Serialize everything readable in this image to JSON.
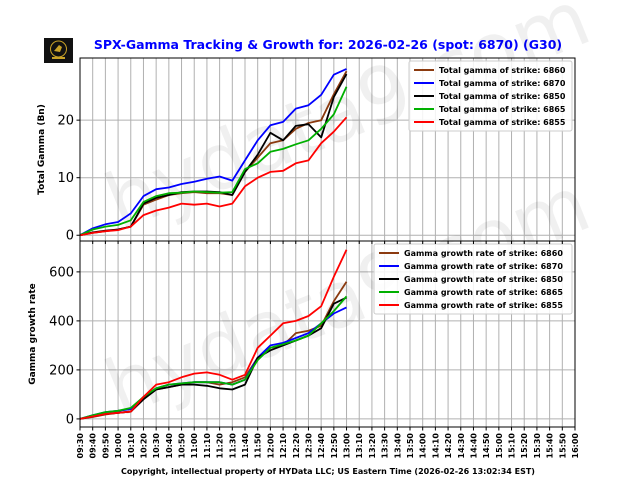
{
  "title": "SPX-Gamma Tracking & Growth for: 2026-02-26 (spot: 6870) (G30)",
  "footer": "Copyright, intellectual property of HYData LLC; US Eastern Time (2026-02-26 13:02:34 EST)",
  "logo": {
    "text": "HYDATA",
    "icon": "bull-logo-icon"
  },
  "watermark": "hydata9.com",
  "colors": {
    "title": "#0000ff",
    "6860": "#8b3a0f",
    "6870": "#0000ff",
    "6850": "#000000",
    "6865": "#00b000",
    "6855": "#ff0000",
    "grid": "#b0b0b0"
  },
  "chart_data": [
    {
      "type": "line",
      "ylabel": "Total Gamma (Bn)",
      "ylim": [
        -1,
        30.8
      ],
      "yticks": [
        0,
        10,
        20
      ],
      "grid": true,
      "legend_placement": "top-right",
      "x_ticks": [
        "09:30",
        "09:40",
        "09:50",
        "10:00",
        "10:10",
        "10:20",
        "10:30",
        "10:40",
        "10:50",
        "11:00",
        "11:10",
        "11:20",
        "11:30",
        "11:40",
        "11:50",
        "12:00",
        "12:10",
        "12:20",
        "12:30",
        "12:40",
        "12:50",
        "13:00",
        "13:10",
        "13:20",
        "13:30",
        "13:40",
        "13:50",
        "14:00",
        "14:10",
        "14:20",
        "14:30",
        "14:40",
        "14:50",
        "15:00",
        "15:10",
        "15:20",
        "15:30",
        "15:40",
        "15:50",
        "16:00"
      ],
      "x": [
        "09:30",
        "09:40",
        "09:50",
        "10:00",
        "10:10",
        "10:20",
        "10:30",
        "10:40",
        "10:50",
        "11:00",
        "11:10",
        "11:20",
        "11:30",
        "11:40",
        "11:50",
        "12:00",
        "12:10",
        "12:20",
        "12:30",
        "12:40",
        "12:50",
        "13:00"
      ],
      "series": [
        {
          "name": "Total gamma of strike: 6860",
          "color": "#8b3a0f",
          "values": [
            0,
            0.4,
            0.7,
            1,
            1.5,
            5.3,
            6.2,
            7,
            7.3,
            7.5,
            7.3,
            7.3,
            7,
            11,
            13.5,
            16,
            16.5,
            18.5,
            19.5,
            20,
            24.5,
            28.5
          ]
        },
        {
          "name": "Total gamma of strike: 6870",
          "color": "#0000ff",
          "values": [
            0,
            1.2,
            1.9,
            2.3,
            3.8,
            6.8,
            8,
            8.3,
            8.9,
            9.3,
            9.8,
            10.2,
            9.5,
            13,
            16.5,
            19.1,
            19.7,
            22,
            22.6,
            24.4,
            27.9,
            28.9
          ]
        },
        {
          "name": "Total gamma of strike: 6850",
          "color": "#000000",
          "values": [
            0,
            0.5,
            0.8,
            1,
            1.5,
            5.5,
            6.5,
            7,
            7.5,
            7.6,
            7.6,
            7.5,
            7,
            11,
            14,
            17.8,
            16.5,
            19,
            19.3,
            17,
            24,
            28
          ]
        },
        {
          "name": "Total gamma of strike: 6865",
          "color": "#00b000",
          "values": [
            0,
            1,
            1.5,
            1.8,
            2.6,
            5.8,
            6.8,
            7.3,
            7.4,
            7.6,
            7.5,
            7.4,
            7.5,
            11.5,
            12.5,
            14.5,
            15,
            15.8,
            16.5,
            18.5,
            21,
            25.8
          ]
        },
        {
          "name": "Total gamma of strike: 6855",
          "color": "#ff0000",
          "values": [
            0,
            0.4,
            0.7,
            0.9,
            1.5,
            3.5,
            4.3,
            4.8,
            5.5,
            5.3,
            5.5,
            5,
            5.5,
            8.5,
            10,
            11,
            11.2,
            12.5,
            13,
            16,
            18,
            20.5
          ]
        }
      ]
    },
    {
      "type": "line",
      "ylabel": "Gamma growth rate",
      "ylim": [
        -33,
        726
      ],
      "yticks": [
        0,
        200,
        400,
        600
      ],
      "grid": true,
      "legend_placement": "top-right",
      "x": [
        "09:30",
        "09:40",
        "09:50",
        "10:00",
        "10:10",
        "10:20",
        "10:30",
        "10:40",
        "10:50",
        "11:00",
        "11:10",
        "11:20",
        "11:30",
        "11:40",
        "11:50",
        "12:00",
        "12:10",
        "12:20",
        "12:30",
        "12:40",
        "12:50",
        "13:00"
      ],
      "series": [
        {
          "name": "Gamma growth rate of strike: 6860",
          "color": "#8b3a0f",
          "values": [
            0,
            8,
            18,
            25,
            30,
            85,
            120,
            130,
            140,
            150,
            150,
            140,
            150,
            170,
            250,
            290,
            300,
            350,
            360,
            380,
            480,
            560
          ]
        },
        {
          "name": "Gamma growth rate of strike: 6870",
          "color": "#0000ff",
          "values": [
            0,
            15,
            28,
            33,
            40,
            90,
            125,
            140,
            145,
            150,
            150,
            150,
            140,
            160,
            250,
            300,
            310,
            330,
            350,
            390,
            430,
            455
          ]
        },
        {
          "name": "Gamma growth rate of strike: 6850",
          "color": "#000000",
          "values": [
            0,
            10,
            20,
            25,
            30,
            80,
            120,
            130,
            140,
            140,
            135,
            125,
            120,
            140,
            250,
            280,
            300,
            320,
            340,
            370,
            470,
            495
          ]
        },
        {
          "name": "Gamma growth rate of strike: 6865",
          "color": "#00b000",
          "values": [
            0,
            15,
            28,
            33,
            45,
            90,
            125,
            140,
            145,
            150,
            150,
            150,
            140,
            160,
            240,
            290,
            305,
            320,
            340,
            390,
            440,
            500
          ]
        },
        {
          "name": "Gamma growth rate of strike: 6855",
          "color": "#ff0000",
          "values": [
            0,
            10,
            20,
            25,
            30,
            90,
            140,
            150,
            170,
            185,
            190,
            180,
            160,
            180,
            290,
            340,
            390,
            400,
            420,
            460,
            580,
            690
          ]
        }
      ]
    }
  ]
}
